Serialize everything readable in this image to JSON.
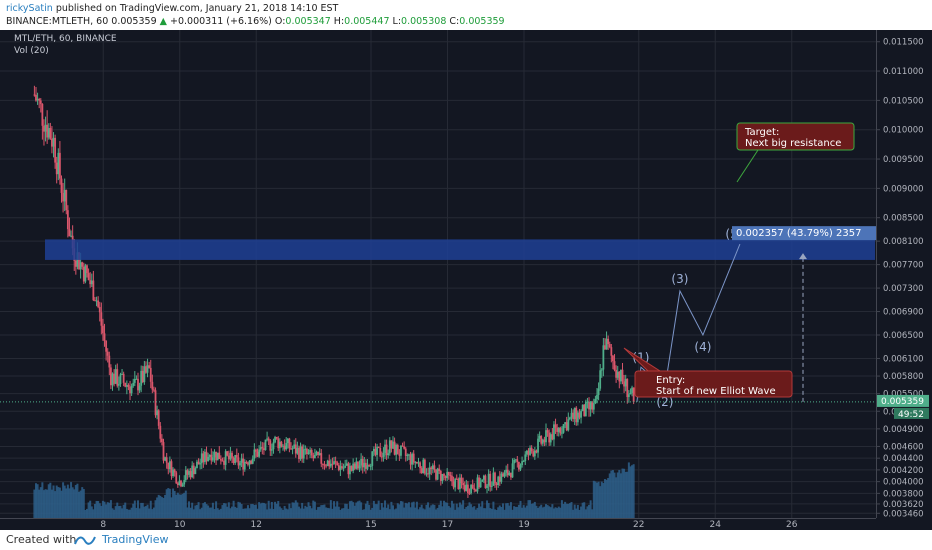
{
  "header": {
    "author": "rickySatin",
    "published": " published on TradingView.com, January 21, 2018 14:10 EST",
    "symbol_line": "BINANCE:MTLETH, 60",
    "last": "0.005359",
    "change_arrow": "▲",
    "change": "+0.000311 (+6.16%)",
    "o_label": "O:",
    "o_value": "0.005347",
    "h_label": "H:",
    "h_value": "0.005447",
    "l_label": "L:",
    "l_value": "0.005308",
    "c_label": "C:",
    "c_value": "0.005359"
  },
  "legend": {
    "title": "MTL/ETH, 60, BINANCE",
    "volume": "Vol (20)"
  },
  "annotations": {
    "target_title": "Target:",
    "target_text": "Next big resistance",
    "entry_title": "Entry:",
    "entry_text": "Start of new Elliot Wave",
    "measure_label": "0.002357 (43.79%) 2357",
    "wave_labels": [
      "(1)",
      "(2)",
      "(3)",
      "(4)",
      "(5)"
    ],
    "last_price_label": "0.005359",
    "countdown": "49:52"
  },
  "footer": {
    "created_with": "Created with",
    "brand": "TradingView"
  },
  "colors": {
    "background": "#131722",
    "grid": "#262a35",
    "up": "#4fae8a",
    "down": "#d9566b",
    "volume": "#2e5f8a",
    "resistance_band": "#1f3f94",
    "target_box": "#6b1b1b",
    "annotation_line": "#7c95c8"
  },
  "chart_data": {
    "type": "candlestick",
    "title": "MTL/ETH, 60, BINANCE",
    "ylim": [
      0.00338,
      0.0117
    ],
    "y_ticks": [
      0.00346,
      0.00362,
      0.0038,
      0.004,
      0.0042,
      0.0044,
      0.0046,
      0.0049,
      0.0052,
      0.0055,
      0.0058,
      0.0061,
      0.0065,
      0.0069,
      0.0073,
      0.0077,
      0.0081,
      0.0085,
      0.009,
      0.0095,
      0.01,
      0.0105,
      0.011,
      0.0115
    ],
    "x_ticks": [
      "8",
      "10",
      "12",
      "15",
      "17",
      "19",
      "22",
      "24",
      "26"
    ],
    "x_tick_positions_days": [
      1,
      3,
      5,
      8,
      10,
      12,
      15,
      17,
      19
    ],
    "approx_close_path": [
      {
        "day": -0.8,
        "price": 0.0106
      },
      {
        "day": -0.3,
        "price": 0.0098
      },
      {
        "day": 0.2,
        "price": 0.008
      },
      {
        "day": 0.8,
        "price": 0.0072
      },
      {
        "day": 1.2,
        "price": 0.0058
      },
      {
        "day": 1.8,
        "price": 0.0056
      },
      {
        "day": 2.2,
        "price": 0.0059
      },
      {
        "day": 2.6,
        "price": 0.0044
      },
      {
        "day": 3.0,
        "price": 0.004
      },
      {
        "day": 3.8,
        "price": 0.0045
      },
      {
        "day": 4.6,
        "price": 0.0043
      },
      {
        "day": 5.5,
        "price": 0.0047
      },
      {
        "day": 6.5,
        "price": 0.0044
      },
      {
        "day": 7.5,
        "price": 0.0042
      },
      {
        "day": 8.5,
        "price": 0.0046
      },
      {
        "day": 9.5,
        "price": 0.0042
      },
      {
        "day": 10.5,
        "price": 0.0039
      },
      {
        "day": 11.5,
        "price": 0.0041
      },
      {
        "day": 12.5,
        "price": 0.0047
      },
      {
        "day": 13.3,
        "price": 0.0051
      },
      {
        "day": 13.9,
        "price": 0.0053
      },
      {
        "day": 14.1,
        "price": 0.0064
      },
      {
        "day": 14.5,
        "price": 0.0058
      },
      {
        "day": 14.9,
        "price": 0.005359
      }
    ],
    "resistance_zone": [
      0.00778,
      0.00813
    ],
    "target_measure": {
      "price": 0.0081,
      "change": 0.002357,
      "percent": 43.79
    },
    "last_price": 0.005359,
    "elliott_wave_projection": [
      {
        "label": "(1)",
        "price": 0.00595
      },
      {
        "label": "(2)",
        "price": 0.0056
      },
      {
        "label": "(3)",
        "price": 0.00725
      },
      {
        "label": "(4)",
        "price": 0.0065
      },
      {
        "label": "(5)",
        "price": 0.00805
      }
    ]
  }
}
